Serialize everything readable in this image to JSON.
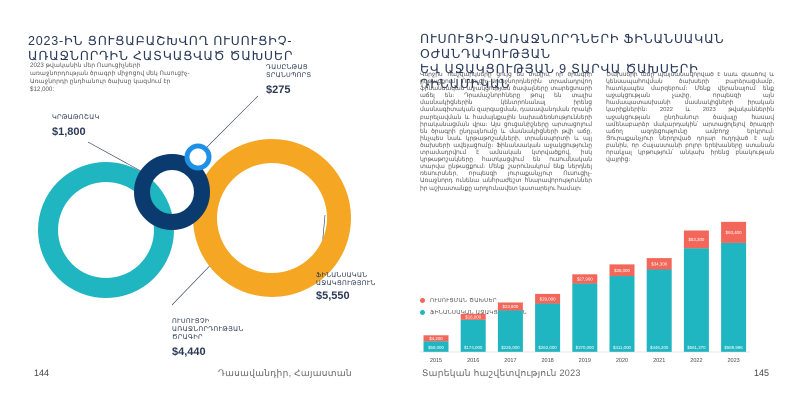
{
  "left_page": {
    "title": "2023-ԻՆ ՑՈՒՑԱԲԱՇԽՎՈՂ ՈՒՍՈՒՑԻՉ-ԱՌԱՋՆՈՐԴԻՆ ՀԱՏԿԱՑՎԱԾ ԾԱԽՍԵՐ",
    "intro": "2023 թվականին մեր Ուսուցիչների առաջնորդության ծրագրի միջոցով մեկ Ուսուցիչ-Առաջնորդի ընդհանուր ծախսը կազմում էր $12,000:",
    "folio": "144",
    "running_head": "Դասավանդիր, Հայաստան",
    "items": [
      {
        "label": "ԴԱՍԸՆԹԱՑ ՏՐԱՆՍՊՈՐՏ",
        "value": "$275"
      },
      {
        "label": "ԿՐԹԱԹՈՇԱԿ",
        "value": "$1,800"
      },
      {
        "label": "ՖԻՆԱՆՍԱԿԱՆ ԱՋԱԿՑՈՒԹՅՈՒՆ",
        "value": "$5,550"
      },
      {
        "label": "ՈՒՍՈՒՑՉԻ ԱՌԱՋՆՈՐԴՈՒԹՅԱՆ ԾՐԱԳԻՐ",
        "value": "$4,440"
      }
    ],
    "colors": {
      "orange": "#F5A623",
      "navy": "#0B3A6E",
      "blue": "#1E90E6",
      "teal": "#1FB5C1"
    }
  },
  "right_page": {
    "title_line1": "ՈՒՍՈՒՑԻՉ-ԱՌԱՋՆՈՐԴՆԵՐԻ ՖԻՆԱՆՍԱԿԱՆ ՕԺԱՆԴԱԿՈՒԹՅԱՆ",
    "title_line2": "ԵՎ ԱՋԱԿՑՈՒԹՅԱՆ 9 ՏԱՐՎԱ ԾԱԽՍԵՐԻ ԴԻՆԱՄԻԿԱՆ",
    "col1": "Վերջին հաշվարկները ցույց են տալիս, որ ծրագրի ընթացքում Ուսուցիչ-Առաջնորդներին տրամադրվող ֆինանսական աջակցության ծավալները տարեցտարի աճել են։ Դրամաշնորհները թույլ են տալիս մասնակիցներին կենտրոնանալ իրենց մասնագիտական զարգացման, դասավանդման որակի բարելավման և համայնքային նախաձեռնությունների իրականացման վրա։ Այս ցուցանիշները արտացոլում են ծրագրի ընդլայնումը և մասնակիցների թվի աճը, ինչպես նաև կրթաթոշակների, տրանսպորտի և այլ ծախսերի ավելացումը։ Ֆինանսական աջակցությունը տրամադրվում է ամսական կտրվածքով, իսկ կրթաթոշակները հատկացվում են ուսումնական տարվա ընթացքում։ Մենք շարունակում ենք ներդնել ռեսուրսներ, որպեսզի յուրաքանչյուր Ուսուցիչ-Առաջնորդ ունենա անհրաժեշտ հնարավորություններ իր աշխատանքը արդյունավետ կատարելու համար։",
    "col2": "Ծախսերի աճը պայմանավորված է նաև գնաճով և կենսապահովման ծախսերի բարձրացմամբ, հատկապես մարզերում։ Մենք վերանայում ենք աջակցության չափը, որպեսզի այն համապատասխանի մասնակիցների իրական կարիքներին։ 2022 և 2023 թվականներին աջակցության ընդհանուր ծավալը հասավ ամենաբարձր մակարդակին՝ արտացոլելով ծրագրի աճող ազդեցությունը ամբողջ երկրում։ Յուրաքանչյուր ներդրված դոլար ուղղված է այն բանին, որ Հայաստանի բոլոր երեխաները ստանան որակյալ կրթություն՝ անկախ իրենց բնակության վայրից։",
    "folio": "145",
    "running_head": "Տարեկան հաշվետվություն 2023",
    "legend": [
      {
        "label": "ՈՒՍՈՒՑՄԱՆ ԾԱԽՍԵՐ",
        "color": "#F2675A"
      },
      {
        "label": "ՖԻՆԱՆՍԱԿԱՆ ԱՋԱԿՑՈՒԹՅՈՒՆ",
        "color": "#1FB5C1"
      }
    ]
  },
  "chart_data": [
    {
      "type": "pie",
      "title": "2023-ԻՆ ՑՈՒՑԱԲԱՇԽՎՈՂ ՈՒՍՈՒՑԻՉ-ԱՌԱՋՆՈՐԴԻՆ ՀԱՏԿԱՑՎԱԾ ԾԱԽՍԵՐ",
      "categories": [
        "ԴԱՍԸՆԹԱՑ ՏՐԱՆՍՊՈՐՏ",
        "ԿՐԹԱԹՈՇԱԿ",
        "ՖԻՆԱՆՍԱԿԱՆ ԱՋԱԿՑՈՒԹՅՈՒՆ",
        "ՈՒՍՈՒՑՉԻ ԱՌԱՋՆՈՐԴՈՒԹՅԱՆ ԾՐԱԳԻՐ"
      ],
      "values": [
        275,
        1800,
        5550,
        4440
      ]
    },
    {
      "type": "bar",
      "stacked": true,
      "categories": [
        "2015",
        "2016",
        "2017",
        "2018",
        "2019",
        "2020",
        "2021",
        "2022",
        "2023"
      ],
      "series": [
        {
          "name": "ՖԻՆԱՆՍԱԿԱՆ ԱՋԱԿՑՈՒԹՅՈՒՆ",
          "values": [
            58000,
            174000,
            225000,
            262000,
            370000,
            411000,
            446200,
            561370,
            589996
          ],
          "labels": [
            "$58,000",
            "$174,000",
            "$225,000",
            "$262,000",
            "$370,000",
            "$411,000",
            "$446,200",
            "$561,370",
            "$589,996"
          ]
        },
        {
          "name": "ՈՒՍՈՒՑՄԱՆ ԾԱԽՍԵՐ",
          "values": [
            4200,
            16000,
            23800,
            29000,
            27900,
            35000,
            34300,
            53300,
            63400
          ],
          "labels": [
            "$4,200",
            "$16,000",
            "$23,800",
            "$29,000",
            "$27,900",
            "$35,000",
            "$34,300",
            "$53,300",
            "$63,400"
          ]
        }
      ],
      "legend": "top-left",
      "grid": false
    }
  ]
}
